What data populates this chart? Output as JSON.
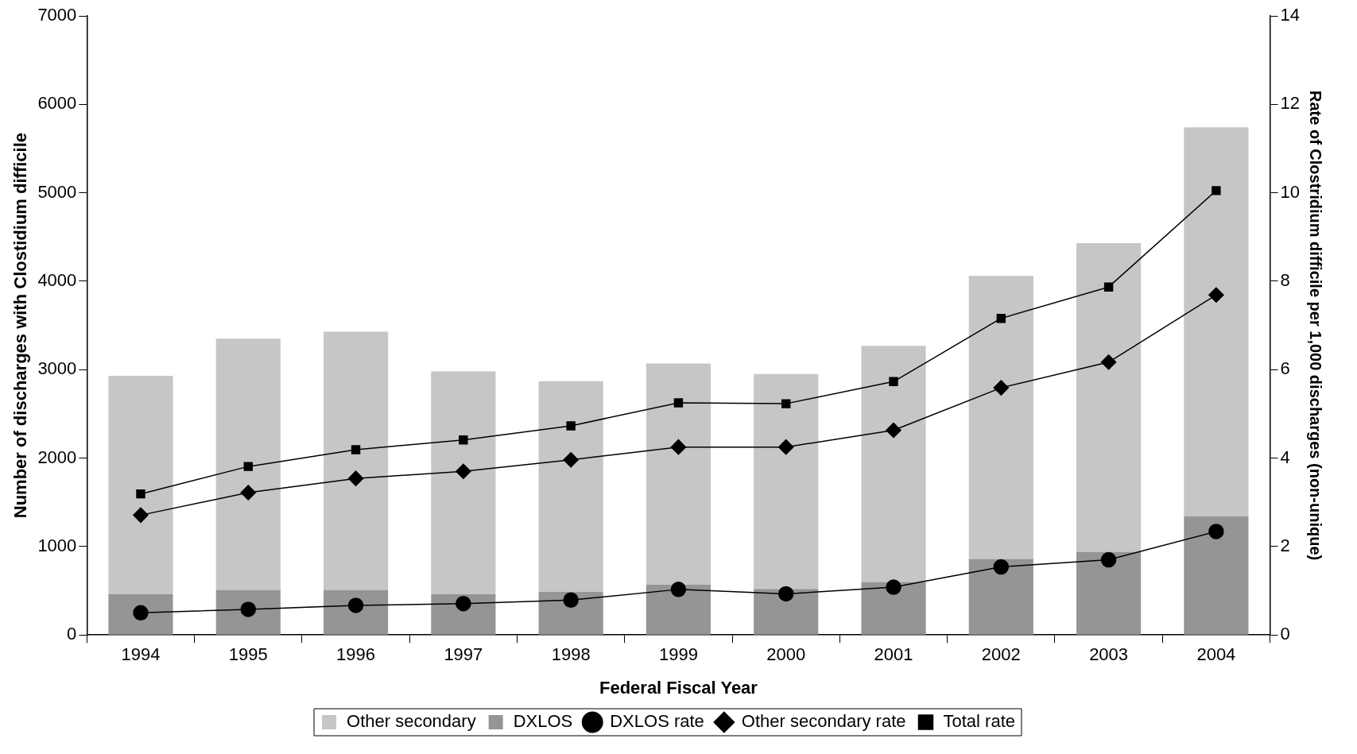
{
  "chart_data": {
    "type": "bar",
    "stacked": true,
    "xlabel": "Federal Fiscal Year",
    "ylabel": "Number of discharges with Clostidium difficile",
    "y2label": "Rate of Clostridium difficile per 1,000 discharges (non-unique)",
    "categories": [
      "1994",
      "1995",
      "1996",
      "1997",
      "1998",
      "1999",
      "2000",
      "2001",
      "2002",
      "2003",
      "2004"
    ],
    "series": [
      {
        "name": "DXLOS",
        "color": "#959693",
        "values": [
          460,
          510,
          510,
          460,
          490,
          570,
          520,
          600,
          860,
          940,
          1340
        ]
      },
      {
        "name": "Other secondary",
        "color": "#c6c5c8",
        "values": [
          2470,
          2840,
          2920,
          2520,
          2380,
          2500,
          2430,
          2670,
          3200,
          3490,
          4400
        ]
      },
      {
        "name": "DXLOS rate",
        "type": "line",
        "axis": "y2",
        "marker": "circle",
        "color": "#000000",
        "values": [
          0.5,
          0.58,
          0.67,
          0.71,
          0.79,
          1.03,
          0.93,
          1.08,
          1.54,
          1.7,
          2.34
        ]
      },
      {
        "name": "Other secondary rate",
        "type": "line",
        "axis": "y2",
        "marker": "diamond",
        "color": "#000000",
        "values": [
          2.71,
          3.22,
          3.54,
          3.7,
          3.96,
          4.25,
          4.25,
          4.63,
          5.59,
          6.17,
          7.69
        ]
      },
      {
        "name": "Total rate",
        "type": "line",
        "axis": "y2",
        "marker": "square",
        "color": "#000000",
        "values": [
          3.19,
          3.81,
          4.19,
          4.41,
          4.73,
          5.25,
          5.23,
          5.73,
          7.16,
          7.87,
          10.05
        ]
      }
    ],
    "ylim": [
      0,
      7000
    ],
    "yticks": [
      0,
      1000,
      2000,
      3000,
      4000,
      5000,
      6000,
      7000
    ],
    "y2lim": [
      0,
      14
    ],
    "y2ticks": [
      0,
      2,
      4,
      6,
      8,
      10,
      12,
      14
    ],
    "grid": false,
    "legend": "bottom",
    "line_style": "solid"
  }
}
